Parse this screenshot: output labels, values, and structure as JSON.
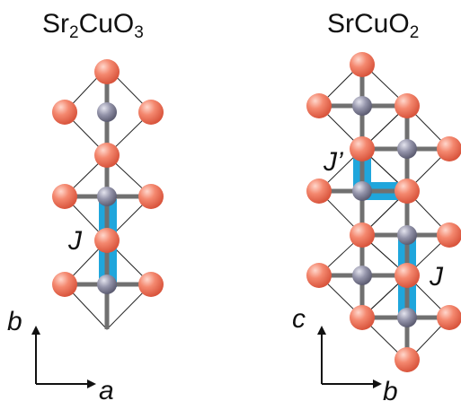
{
  "titles": {
    "left": {
      "pre": "Sr",
      "sub1": "2",
      "mid": "CuO",
      "sub2": "3"
    },
    "right": {
      "pre": "SrCuO",
      "sub": "2"
    }
  },
  "labels": {
    "left_coupling": "J",
    "right_interchain": "J’",
    "right_chain": "J"
  },
  "axes": {
    "left": {
      "vertical": "b",
      "horizontal": "a"
    },
    "right": {
      "vertical": "c",
      "horizontal": "b"
    }
  },
  "colors": {
    "oxygen": "#f07a66",
    "copper": "#8a8aa0",
    "bond": "#707070",
    "outline": "#222222",
    "highlight": "#1fa6dc"
  }
}
